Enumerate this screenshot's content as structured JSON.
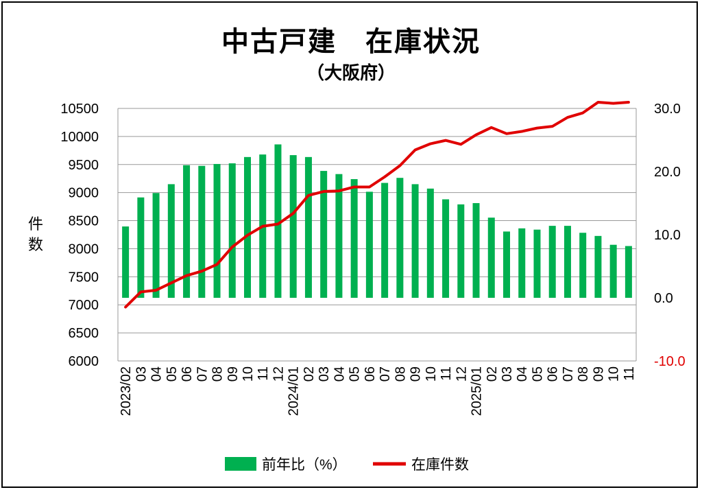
{
  "chart_data": {
    "title": "中古戸建　在庫状況",
    "subtitle": "（大阪府）",
    "type": "bar+line",
    "categories": [
      "2023/02",
      "03",
      "04",
      "05",
      "06",
      "07",
      "08",
      "09",
      "10",
      "11",
      "12",
      "2024/01",
      "02",
      "03",
      "04",
      "05",
      "06",
      "07",
      "08",
      "09",
      "10",
      "11",
      "12",
      "2025/01",
      "02",
      "03",
      "04",
      "05",
      "06",
      "07",
      "08",
      "09",
      "10",
      "11"
    ],
    "ylabel_left": "件\n数",
    "ylim_left": [
      6000,
      10500
    ],
    "yticks_left": [
      "6000",
      "6500",
      "7000",
      "7500",
      "8000",
      "8500",
      "9000",
      "9500",
      "10000",
      "10500"
    ],
    "ylim_right": [
      -10,
      30
    ],
    "yticks_right": [
      "-10.0",
      "0.0",
      "10.0",
      "20.0",
      "30.0"
    ],
    "series": [
      {
        "name": "前年比（%）",
        "type": "bar",
        "axis": "right",
        "color": "#00B050",
        "values": [
          11.3,
          15.9,
          16.6,
          18.0,
          21.0,
          20.9,
          21.2,
          21.3,
          22.3,
          22.7,
          24.3,
          22.6,
          22.3,
          20.1,
          19.6,
          18.8,
          16.8,
          18.2,
          19.0,
          18.0,
          17.3,
          15.6,
          14.8,
          15.0,
          12.7,
          10.5,
          11.0,
          10.8,
          11.4,
          11.4,
          10.3,
          9.8,
          8.4,
          8.2
        ]
      },
      {
        "name": "在庫件数",
        "type": "line",
        "axis": "left",
        "color": "#E00000",
        "values": [
          6960,
          7230,
          7260,
          7390,
          7520,
          7600,
          7720,
          8030,
          8240,
          8400,
          8440,
          8630,
          8950,
          9020,
          9030,
          9100,
          9100,
          9280,
          9480,
          9760,
          9870,
          9930,
          9860,
          10030,
          10160,
          10050,
          10090,
          10150,
          10180,
          10340,
          10420,
          10610,
          10590,
          10610
        ]
      }
    ],
    "grid": true,
    "legend_position": "bottom"
  }
}
